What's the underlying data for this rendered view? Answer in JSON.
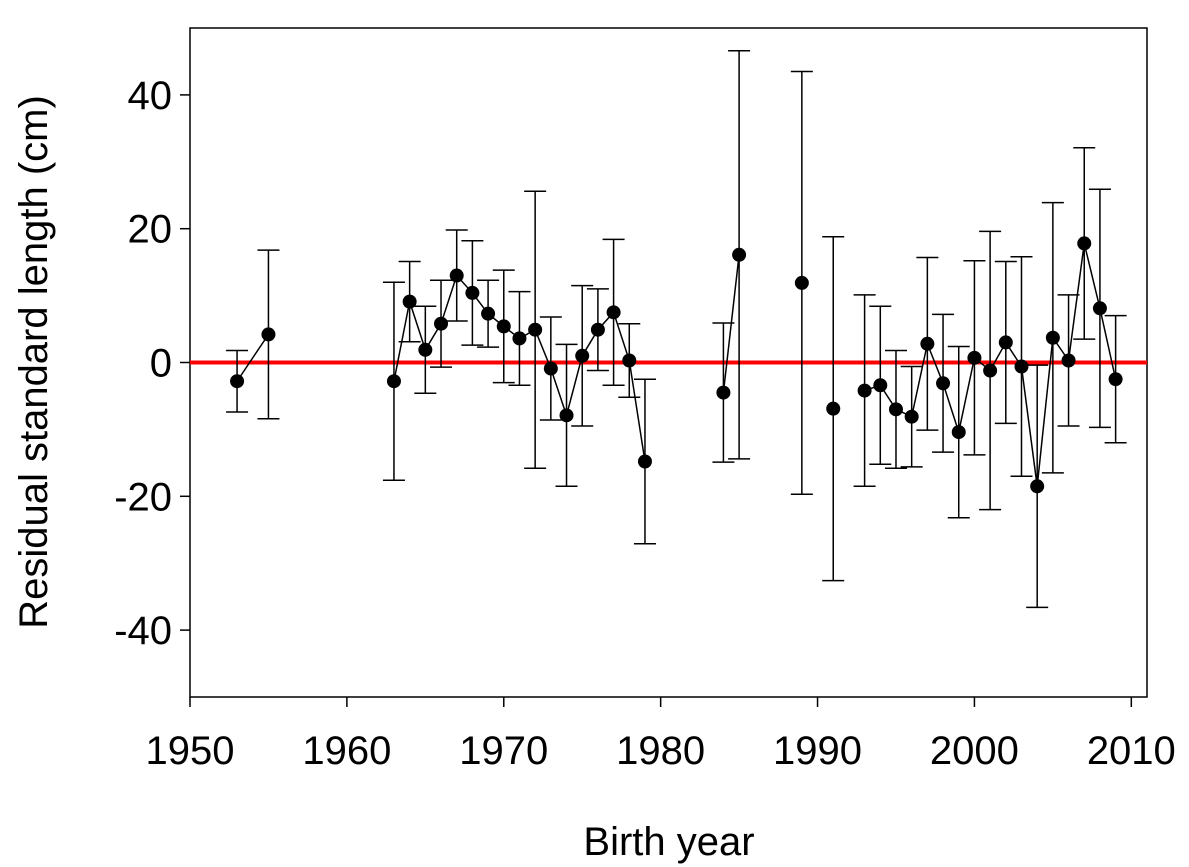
{
  "chart_data": {
    "type": "errorbar-line",
    "x_label": "Birth year",
    "y_label": "Residual standard length (cm)",
    "x": [
      1953,
      1955,
      1956,
      1963,
      1964,
      1965,
      1966,
      1967,
      1968,
      1969,
      1970,
      1971,
      1972,
      1973,
      1974,
      1975,
      1976,
      1977,
      1978,
      1979,
      1980,
      1984,
      1985,
      1986,
      1989,
      1990,
      1991,
      1992,
      1993,
      1994,
      1995,
      1996,
      1997,
      1998,
      1999,
      2000,
      2001,
      2002,
      2003,
      2004,
      2005,
      2006,
      2007,
      2008,
      2009
    ],
    "values": [
      -2.8,
      4.2,
      null,
      -2.8,
      9.1,
      1.9,
      5.8,
      13.0,
      10.4,
      7.3,
      5.4,
      3.6,
      4.9,
      -0.9,
      -7.9,
      1.0,
      4.9,
      7.5,
      0.3,
      -14.8,
      null,
      -4.5,
      16.1,
      null,
      11.9,
      null,
      -6.9,
      null,
      -4.2,
      -3.4,
      -7.0,
      -8.1,
      2.8,
      -3.1,
      -10.4,
      0.7,
      -1.2,
      3.0,
      -0.6,
      -18.5,
      3.7,
      0.3,
      17.8,
      8.1,
      -2.5
    ],
    "errors": [
      4.6,
      12.6,
      null,
      14.8,
      6.0,
      6.5,
      6.5,
      6.8,
      7.8,
      5.0,
      8.4,
      7.0,
      20.7,
      7.7,
      10.6,
      10.5,
      6.1,
      10.9,
      5.5,
      12.3,
      null,
      10.4,
      30.5,
      null,
      31.6,
      null,
      25.7,
      null,
      14.3,
      11.8,
      8.8,
      7.5,
      12.9,
      10.3,
      12.8,
      14.5,
      20.8,
      12.1,
      16.4,
      18.1,
      20.2,
      9.8,
      14.3,
      17.8,
      9.5
    ],
    "color": "#000000",
    "reference_line": {
      "value": 0,
      "color": "#ff0000"
    },
    "xlim": [
      1950,
      2011
    ],
    "xticks": [
      1950,
      1960,
      1970,
      1980,
      1990,
      2000,
      2010
    ],
    "ylim": [
      -50,
      50
    ],
    "yticks": [
      -40,
      -20,
      0,
      20,
      40
    ]
  }
}
